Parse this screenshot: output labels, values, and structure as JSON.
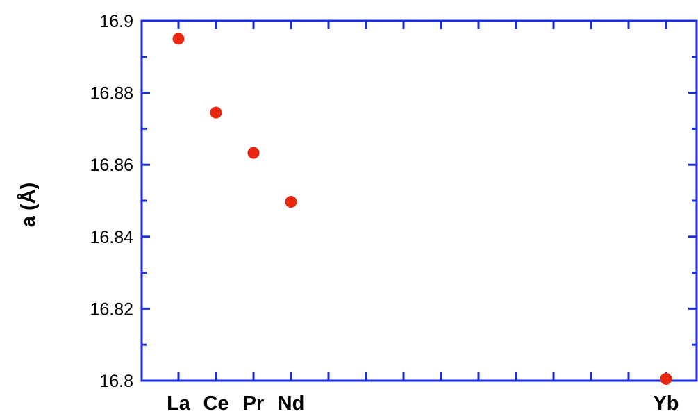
{
  "colors": {
    "axis": "#1a2ee0",
    "point": "#e8270f",
    "text": "#000000"
  },
  "chart_data": {
    "type": "scatter",
    "title": "",
    "xlabel": "",
    "ylabel": "a (Å)",
    "x_ticks": [
      "La",
      "Ce",
      "Pr",
      "Nd",
      "",
      "",
      "",
      "",
      "",
      "",
      "",
      "",
      "",
      "Yb"
    ],
    "x_labels": [
      "La",
      "Ce",
      "Pr",
      "Nd",
      "Yb"
    ],
    "y_ticks": [
      "16.8",
      "16.82",
      "16.84",
      "16.86",
      "16.88",
      "16.9"
    ],
    "ylim": [
      16.8,
      16.9
    ],
    "grid": false,
    "legend": "none",
    "series": [
      {
        "x": [
          "La",
          "Ce",
          "Pr",
          "Nd",
          "Yb"
        ],
        "values": [
          16.895,
          16.8745,
          16.8633,
          16.8497,
          16.8005
        ]
      }
    ]
  }
}
